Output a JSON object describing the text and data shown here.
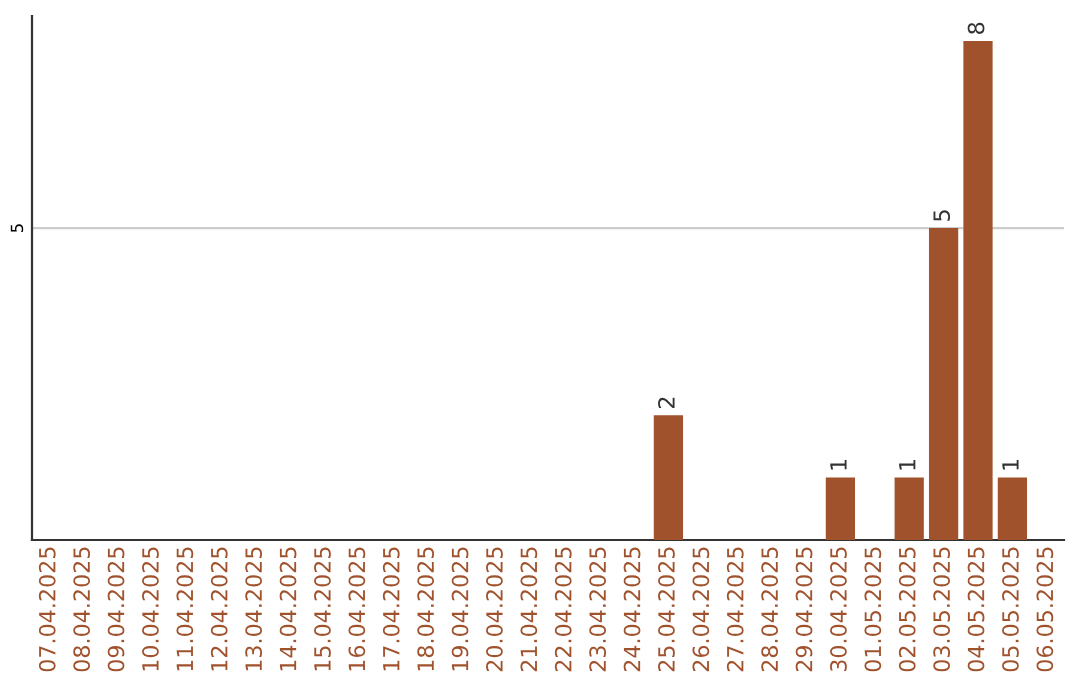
{
  "chart_data": {
    "type": "bar",
    "categories": [
      "07.04.2025",
      "08.04.2025",
      "09.04.2025",
      "10.04.2025",
      "11.04.2025",
      "12.04.2025",
      "13.04.2025",
      "14.04.2025",
      "15.04.2025",
      "16.04.2025",
      "17.04.2025",
      "18.04.2025",
      "19.04.2025",
      "20.04.2025",
      "21.04.2025",
      "22.04.2025",
      "23.04.2025",
      "24.04.2025",
      "25.04.2025",
      "26.04.2025",
      "27.04.2025",
      "28.04.2025",
      "29.04.2025",
      "30.04.2025",
      "01.05.2025",
      "02.05.2025",
      "03.05.2025",
      "04.05.2025",
      "05.05.2025",
      "06.05.2025"
    ],
    "values": [
      null,
      null,
      null,
      null,
      null,
      null,
      null,
      null,
      null,
      null,
      null,
      null,
      null,
      null,
      null,
      null,
      null,
      null,
      2,
      null,
      null,
      null,
      null,
      1,
      null,
      1,
      5,
      8,
      1,
      null
    ],
    "value_labels": [
      null,
      null,
      null,
      null,
      null,
      null,
      null,
      null,
      null,
      null,
      null,
      null,
      null,
      null,
      null,
      null,
      null,
      null,
      "2",
      null,
      null,
      null,
      null,
      "1",
      null,
      "1",
      "5",
      "8",
      "1",
      null
    ],
    "color": "#a0522d",
    "ylim": [
      0,
      8.4
    ],
    "yticks": [
      5
    ],
    "grid": "y"
  }
}
